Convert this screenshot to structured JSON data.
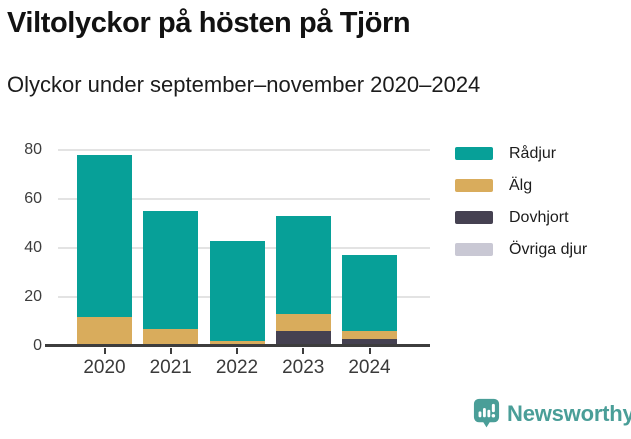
{
  "header": {
    "title": "Viltolyckor på hösten på Tjörn",
    "subtitle": "Olyckor under september–november 2020–2024"
  },
  "chart_data": {
    "type": "bar",
    "stacked": true,
    "title": "Viltolyckor på hösten på Tjörn",
    "subtitle": "Olyckor under september–november 2020–2024",
    "categories": [
      "2020",
      "2021",
      "2022",
      "2023",
      "2024"
    ],
    "series": [
      {
        "name": "Rådjur",
        "color": "#07a098",
        "values": [
          66,
          48,
          41,
          40,
          31
        ]
      },
      {
        "name": "Älg",
        "color": "#d9ac5c",
        "values": [
          12,
          6,
          1,
          7,
          3
        ]
      },
      {
        "name": "Dovhjort",
        "color": "#454151",
        "values": [
          0,
          0,
          1,
          5,
          3
        ]
      },
      {
        "name": "Övriga djur",
        "color": "#c9c8d4",
        "values": [
          0,
          1,
          0,
          1,
          0
        ]
      }
    ],
    "stack_order_bottom_to_top": [
      "Övriga djur",
      "Dovhjort",
      "Älg",
      "Rådjur"
    ],
    "totals": [
      78,
      55,
      43,
      53,
      37
    ],
    "xlabel": "",
    "ylabel": "",
    "ylim": [
      0,
      82
    ],
    "yticks": [
      0,
      20,
      40,
      60,
      80
    ],
    "grid": "horizontal",
    "legend_position": "right",
    "colors": {
      "axis": "#3d3d3d",
      "gridline": "#e3e3e3",
      "background": "#ffffff"
    }
  },
  "footer": {
    "brand": "Newsworthy",
    "brand_color": "#4a9e98"
  }
}
